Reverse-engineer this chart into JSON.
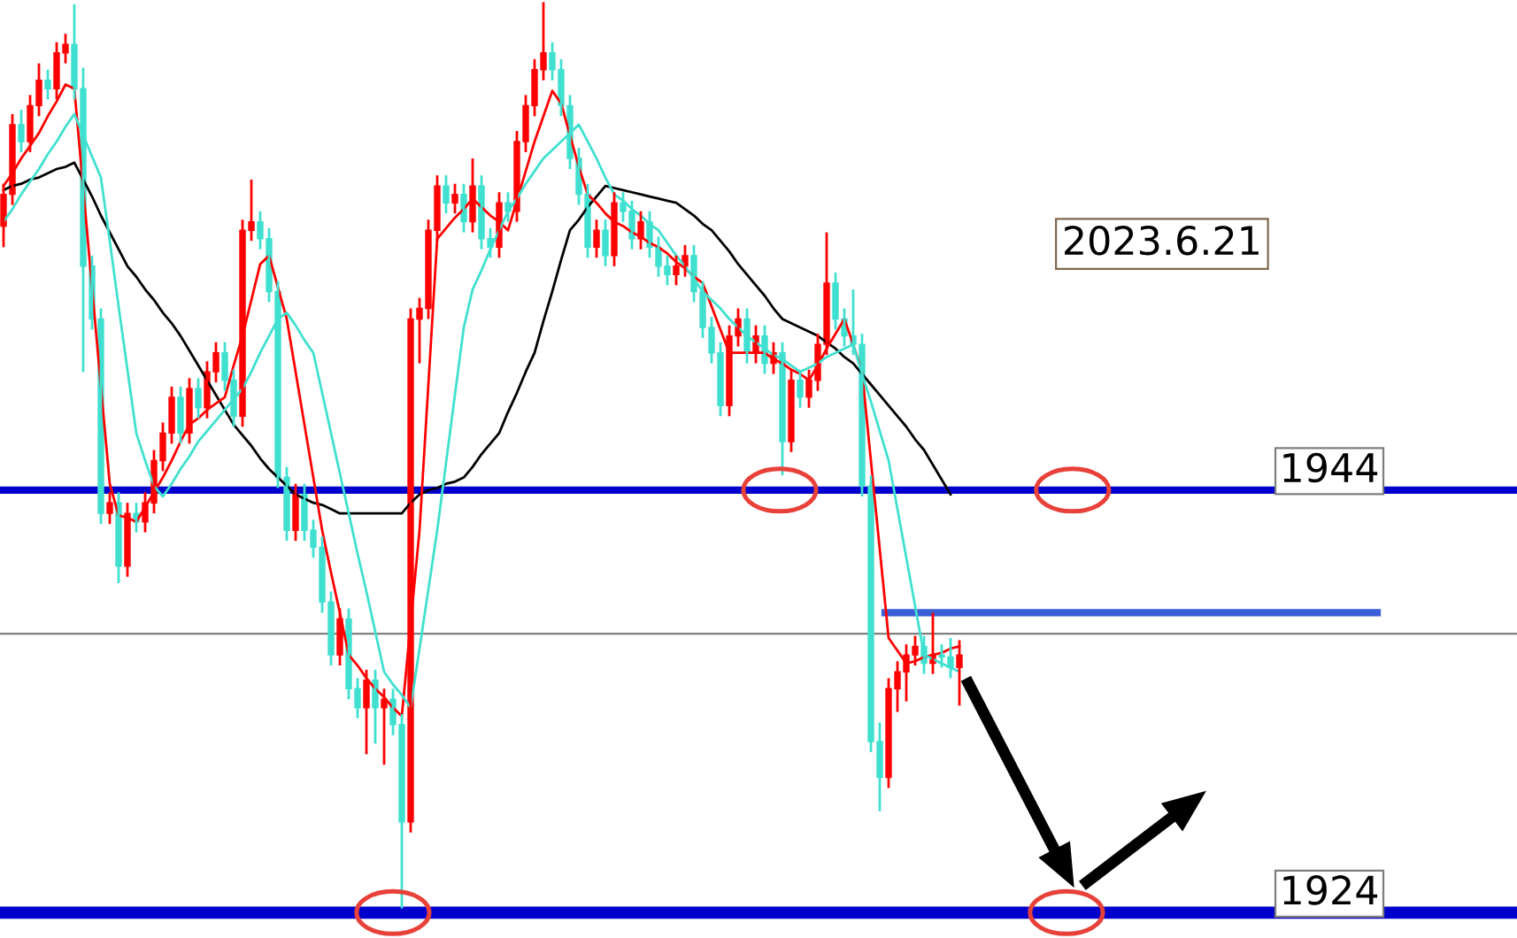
{
  "chart_data": {
    "type": "candlestick",
    "categories": [
      null,
      null,
      null,
      null,
      null,
      null,
      null,
      null,
      null,
      null,
      null,
      null,
      null,
      null,
      null,
      null,
      null,
      null,
      null,
      null,
      null,
      null,
      null,
      null,
      null,
      null,
      null,
      null,
      null,
      null,
      null,
      null,
      null,
      null,
      null,
      null,
      null,
      null,
      null,
      null,
      null,
      null,
      null,
      null,
      null,
      null,
      null,
      null,
      null,
      null,
      null,
      null,
      null,
      null,
      null,
      null,
      null,
      null,
      null,
      null,
      null,
      null,
      null,
      null,
      null,
      null,
      null,
      null,
      null,
      null,
      null,
      null,
      null,
      null,
      null,
      null,
      null,
      null,
      null,
      null,
      null,
      null,
      null,
      null,
      null,
      null,
      null,
      null,
      null,
      null,
      null,
      null,
      null,
      null,
      null,
      null,
      null,
      null,
      null,
      null,
      null,
      null,
      null,
      null,
      null,
      null,
      null,
      null,
      null
    ],
    "ohlc": [
      [
        1956.5,
        1958.5,
        1955.5,
        1958.0
      ],
      [
        1958.0,
        1961.8,
        1957.5,
        1961.3
      ],
      [
        1961.3,
        1962.0,
        1960.0,
        1960.5
      ],
      [
        1960.5,
        1962.7,
        1960.0,
        1962.2
      ],
      [
        1962.2,
        1964.2,
        1961.7,
        1963.4
      ],
      [
        1963.4,
        1963.9,
        1962.5,
        1963.0
      ],
      [
        1963.0,
        1965.2,
        1962.5,
        1964.7
      ],
      [
        1964.7,
        1965.6,
        1964.2,
        1965.1
      ],
      [
        1965.1,
        1967.0,
        1962.5,
        1963.0
      ],
      [
        1963.0,
        1964.0,
        1949.6,
        1954.6
      ],
      [
        1954.6,
        1955.1,
        1951.6,
        1952.1
      ],
      [
        1952.1,
        1952.6,
        1942.4,
        1942.9
      ],
      [
        1942.9,
        1943.9,
        1942.4,
        1943.4
      ],
      [
        1943.4,
        1943.9,
        1939.6,
        1940.4
      ],
      [
        1940.4,
        1943.4,
        1939.9,
        1942.9
      ],
      [
        1942.9,
        1943.4,
        1942.0,
        1942.5
      ],
      [
        1942.5,
        1943.9,
        1942.0,
        1943.4
      ],
      [
        1943.4,
        1945.9,
        1942.9,
        1945.4
      ],
      [
        1945.4,
        1947.2,
        1944.9,
        1946.7
      ],
      [
        1946.7,
        1948.9,
        1946.2,
        1948.4
      ],
      [
        1948.4,
        1948.9,
        1946.2,
        1946.7
      ],
      [
        1946.7,
        1949.3,
        1946.2,
        1948.8
      ],
      [
        1948.8,
        1949.3,
        1947.4,
        1947.9
      ],
      [
        1947.9,
        1950.1,
        1947.4,
        1949.6
      ],
      [
        1949.6,
        1951.0,
        1949.1,
        1950.5
      ],
      [
        1950.5,
        1951.0,
        1948.7,
        1949.2
      ],
      [
        1949.2,
        1949.7,
        1947.0,
        1947.5
      ],
      [
        1947.5,
        1956.8,
        1947.0,
        1956.3
      ],
      [
        1956.3,
        1958.7,
        1955.8,
        1956.7
      ],
      [
        1956.7,
        1957.2,
        1955.4,
        1955.9
      ],
      [
        1955.9,
        1956.4,
        1952.9,
        1953.4
      ],
      [
        1953.4,
        1953.9,
        1944.1,
        1944.6
      ],
      [
        1944.6,
        1945.1,
        1941.6,
        1942.1
      ],
      [
        1942.1,
        1944.3,
        1941.6,
        1943.8
      ],
      [
        1943.8,
        1944.3,
        1941.6,
        1942.1
      ],
      [
        1942.1,
        1942.6,
        1940.8,
        1941.3
      ],
      [
        1941.3,
        1941.8,
        1938.2,
        1938.7
      ],
      [
        1938.7,
        1939.2,
        1935.7,
        1936.2
      ],
      [
        1936.2,
        1938.4,
        1935.7,
        1937.9
      ],
      [
        1937.9,
        1938.4,
        1934.1,
        1934.6
      ],
      [
        1934.6,
        1935.1,
        1933.2,
        1933.7
      ],
      [
        1933.7,
        1935.5,
        1931.5,
        1935.0
      ],
      [
        1935.0,
        1935.5,
        1932.0,
        1933.7
      ],
      [
        1933.7,
        1934.6,
        1931.0,
        1934.1
      ],
      [
        1934.1,
        1934.6,
        1932.4,
        1932.9
      ],
      [
        1932.9,
        1933.4,
        1924.2,
        1928.3
      ],
      [
        1928.3,
        1952.6,
        1927.8,
        1952.1
      ],
      [
        1952.1,
        1953.1,
        1950.0,
        1952.6
      ],
      [
        1952.6,
        1956.8,
        1952.1,
        1956.3
      ],
      [
        1956.3,
        1958.9,
        1955.8,
        1958.4
      ],
      [
        1958.4,
        1958.9,
        1957.1,
        1957.6
      ],
      [
        1957.6,
        1958.5,
        1957.1,
        1958.0
      ],
      [
        1958.0,
        1958.5,
        1956.2,
        1956.7
      ],
      [
        1956.7,
        1959.7,
        1956.2,
        1958.4
      ],
      [
        1958.4,
        1958.9,
        1955.4,
        1955.9
      ],
      [
        1955.9,
        1956.4,
        1955.0,
        1955.5
      ],
      [
        1955.5,
        1958.1,
        1955.0,
        1957.6
      ],
      [
        1957.6,
        1958.1,
        1956.7,
        1957.2
      ],
      [
        1957.2,
        1961.0,
        1956.7,
        1960.5
      ],
      [
        1960.5,
        1962.7,
        1960.0,
        1962.2
      ],
      [
        1962.2,
        1964.4,
        1961.7,
        1963.9
      ],
      [
        1963.9,
        1967.1,
        1963.4,
        1964.7
      ],
      [
        1964.7,
        1965.2,
        1963.4,
        1963.9
      ],
      [
        1963.9,
        1964.4,
        1961.7,
        1962.2
      ],
      [
        1962.2,
        1962.7,
        1959.2,
        1959.7
      ],
      [
        1959.7,
        1960.2,
        1957.5,
        1958.0
      ],
      [
        1958.0,
        1958.5,
        1955.0,
        1955.5
      ],
      [
        1955.5,
        1956.8,
        1955.0,
        1956.3
      ],
      [
        1956.3,
        1956.8,
        1954.6,
        1955.1
      ],
      [
        1955.1,
        1958.1,
        1954.6,
        1957.6
      ],
      [
        1957.6,
        1958.1,
        1956.7,
        1957.2
      ],
      [
        1957.2,
        1957.7,
        1955.4,
        1955.9
      ],
      [
        1955.9,
        1957.2,
        1955.4,
        1956.7
      ],
      [
        1956.7,
        1957.2,
        1955.0,
        1955.5
      ],
      [
        1955.5,
        1956.0,
        1954.1,
        1954.6
      ],
      [
        1954.6,
        1955.1,
        1953.7,
        1954.2
      ],
      [
        1954.2,
        1955.1,
        1953.7,
        1954.6
      ],
      [
        1954.6,
        1955.6,
        1954.1,
        1955.1
      ],
      [
        1955.1,
        1955.6,
        1952.9,
        1953.4
      ],
      [
        1953.4,
        1953.9,
        1951.2,
        1951.7
      ],
      [
        1951.7,
        1952.2,
        1950.0,
        1950.5
      ],
      [
        1950.5,
        1951.0,
        1947.5,
        1948.0
      ],
      [
        1948.0,
        1951.8,
        1947.5,
        1951.3
      ],
      [
        1951.3,
        1952.6,
        1950.8,
        1952.1
      ],
      [
        1952.1,
        1952.6,
        1950.0,
        1950.5
      ],
      [
        1950.5,
        1951.8,
        1950.0,
        1951.3
      ],
      [
        1951.3,
        1951.8,
        1949.5,
        1950.0
      ],
      [
        1950.0,
        1951.0,
        1949.5,
        1950.5
      ],
      [
        1950.5,
        1951.0,
        1944.7,
        1946.3
      ],
      [
        1946.3,
        1949.7,
        1945.8,
        1949.2
      ],
      [
        1949.2,
        1949.7,
        1947.9,
        1948.4
      ],
      [
        1948.4,
        1949.7,
        1947.9,
        1949.2
      ],
      [
        1949.2,
        1951.4,
        1948.7,
        1950.9
      ],
      [
        1950.9,
        1956.2,
        1950.4,
        1953.8
      ],
      [
        1953.8,
        1954.3,
        1951.6,
        1952.1
      ],
      [
        1952.1,
        1952.6,
        1950.8,
        1951.3
      ],
      [
        1951.3,
        1953.5,
        1950.4,
        1950.9
      ],
      [
        1950.9,
        1951.4,
        1943.7,
        1944.2
      ],
      [
        1944.2,
        1944.7,
        1931.6,
        1932.1
      ],
      [
        1932.1,
        1933.0,
        1928.8,
        1930.4
      ],
      [
        1930.4,
        1935.1,
        1929.9,
        1934.6
      ],
      [
        1934.6,
        1935.9,
        1933.5,
        1935.4
      ],
      [
        1935.4,
        1936.7,
        1934.0,
        1936.2
      ],
      [
        1936.2,
        1937.1,
        1935.7,
        1936.6
      ],
      [
        1936.6,
        1937.1,
        1935.3,
        1935.8
      ],
      [
        1935.8,
        1938.2,
        1935.3,
        1936.2
      ],
      [
        1936.2,
        1936.7,
        1935.6,
        1936.1
      ],
      [
        1936.1,
        1937.0,
        1935.1,
        1935.6
      ],
      [
        1935.6,
        1936.9,
        1933.8,
        1936.2
      ]
    ],
    "colors": [
      "#ff0000",
      "#ff0000",
      "#40e0d0",
      "#ff0000",
      "#ff0000",
      "#40e0d0",
      "#ff0000",
      "#ff0000",
      "#40e0d0",
      "#40e0d0",
      "#40e0d0",
      "#40e0d0",
      "#ff0000",
      "#40e0d0",
      "#ff0000",
      "#40e0d0",
      "#ff0000",
      "#ff0000",
      "#ff0000",
      "#ff0000",
      "#40e0d0",
      "#ff0000",
      "#40e0d0",
      "#ff0000",
      "#ff0000",
      "#40e0d0",
      "#40e0d0",
      "#ff0000",
      "#ff0000",
      "#40e0d0",
      "#40e0d0",
      "#40e0d0",
      "#40e0d0",
      "#ff0000",
      "#40e0d0",
      "#40e0d0",
      "#40e0d0",
      "#40e0d0",
      "#ff0000",
      "#40e0d0",
      "#40e0d0",
      "#ff0000",
      "#40e0d0",
      "#ff0000",
      "#40e0d0",
      "#40e0d0",
      "#ff0000",
      "#ff0000",
      "#ff0000",
      "#ff0000",
      "#40e0d0",
      "#ff0000",
      "#40e0d0",
      "#ff0000",
      "#40e0d0",
      "#40e0d0",
      "#ff0000",
      "#40e0d0",
      "#ff0000",
      "#ff0000",
      "#ff0000",
      "#ff0000",
      "#40e0d0",
      "#40e0d0",
      "#40e0d0",
      "#40e0d0",
      "#40e0d0",
      "#ff0000",
      "#40e0d0",
      "#ff0000",
      "#40e0d0",
      "#40e0d0",
      "#ff0000",
      "#40e0d0",
      "#40e0d0",
      "#40e0d0",
      "#ff0000",
      "#ff0000",
      "#40e0d0",
      "#40e0d0",
      "#40e0d0",
      "#40e0d0",
      "#ff0000",
      "#ff0000",
      "#40e0d0",
      "#ff0000",
      "#40e0d0",
      "#ff0000",
      "#40e0d0",
      "#ff0000",
      "#40e0d0",
      "#ff0000",
      "#ff0000",
      "#ff0000",
      "#40e0d0",
      "#40e0d0",
      "#40e0d0",
      "#40e0d0",
      "#40e0d0",
      "#40e0d0",
      "#ff0000",
      "#ff0000",
      "#ff0000",
      "#ff0000",
      "#40e0d0",
      "#ff0000",
      "#40e0d0",
      "#40e0d0",
      "#ff0000"
    ],
    "series": [
      {
        "type": "line",
        "color": "#000000",
        "values": [
          1958.2,
          1958.4,
          1958.5,
          1958.7,
          1958.8,
          1959.0,
          1959.2,
          1959.3,
          1959.5,
          1958.7,
          1957.9,
          1957.0,
          1956.2,
          1955.4,
          1954.6,
          1954.1,
          1953.5,
          1953.0,
          1952.4,
          1951.9,
          1951.3,
          1950.6,
          1949.9,
          1949.2,
          1948.5,
          1947.8,
          1947.1,
          1946.6,
          1946.1,
          1945.5,
          1945.0,
          1944.6,
          1944.2,
          1943.8,
          1943.6,
          1943.4,
          1943.3,
          1943.1,
          1942.9,
          1942.9,
          1942.9,
          1942.9,
          1942.9,
          1942.9,
          1942.9,
          1942.9,
          1943.4,
          1943.8,
          1944.0,
          1944.1,
          1944.3,
          1944.4,
          1944.6,
          1945.1,
          1945.7,
          1946.2,
          1946.7,
          1947.7,
          1948.6,
          1949.6,
          1950.5,
          1952.0,
          1953.4,
          1954.9,
          1956.3,
          1956.8,
          1957.4,
          1957.9,
          1958.4,
          1958.3,
          1958.2,
          1958.1,
          1958.0,
          1957.9,
          1957.8,
          1957.7,
          1957.6,
          1957.3,
          1957.0,
          1956.6,
          1956.3,
          1955.8,
          1955.3,
          1954.7,
          1954.2,
          1953.7,
          1953.2,
          1952.6,
          1952.1,
          1951.9,
          1951.7,
          1951.5,
          1951.3,
          1951.0,
          1950.7,
          1950.3,
          1950.0,
          1949.5,
          1949.0,
          1948.5,
          1948.0,
          1947.5,
          1947.0,
          1946.4,
          1945.9,
          1945.2,
          1944.5,
          1943.8,
          null
        ]
      },
      {
        "type": "line",
        "color": "#ff0000",
        "values": [
          1958.4,
          1959.0,
          1959.7,
          1960.3,
          1960.9,
          1961.7,
          1962.4,
          1963.2,
          1963.0,
          1958.3,
          1953.6,
          1948.9,
          1944.3,
          1942.8,
          1942.7,
          1942.5,
          1943.2,
          1943.9,
          1944.6,
          1945.4,
          1946.3,
          1947.1,
          1947.4,
          1947.8,
          1948.1,
          1948.4,
          1949.9,
          1951.3,
          1953.0,
          1954.7,
          1955.1,
          1953.6,
          1952.1,
          1949.6,
          1947.1,
          1944.6,
          1942.1,
          1940.1,
          1938.2,
          1936.2,
          1935.7,
          1935.1,
          1934.6,
          1934.2,
          1933.7,
          1933.3,
          1937.7,
          1942.1,
          1949.0,
          1955.9,
          1956.4,
          1956.9,
          1957.3,
          1957.8,
          1957.4,
          1957.0,
          1956.7,
          1956.3,
          1957.7,
          1959.1,
          1960.5,
          1961.7,
          1962.9,
          1962.3,
          1960.8,
          1959.3,
          1958.0,
          1957.6,
          1957.1,
          1956.7,
          1956.5,
          1956.2,
          1956.0,
          1955.7,
          1955.5,
          1955.2,
          1954.8,
          1954.5,
          1954.1,
          1953.8,
          1952.7,
          1951.6,
          1950.5,
          1950.5,
          1950.5,
          1950.5,
          1950.5,
          1950.2,
          1950.0,
          1949.7,
          1949.5,
          1949.2,
          1949.9,
          1950.7,
          1951.4,
          1952.1,
          1950.9,
          1949.6,
          1945.4,
          1941.2,
          1937.0,
          1936.4,
          1935.8,
          1935.9,
          1936.1,
          1936.2,
          1936.3,
          1936.5,
          1936.6
        ]
      },
      {
        "type": "line",
        "color": "#40e0d0",
        "values": [
          1956.7,
          1957.3,
          1958.0,
          1958.6,
          1959.2,
          1959.9,
          1960.5,
          1961.2,
          1961.8,
          1960.8,
          1959.8,
          1958.8,
          1955.8,
          1952.7,
          1949.7,
          1946.7,
          1945.4,
          1944.2,
          1943.7,
          1944.3,
          1945.0,
          1945.6,
          1946.3,
          1946.8,
          1947.3,
          1947.8,
          1948.3,
          1948.8,
          1949.6,
          1950.5,
          1951.3,
          1952.1,
          1952.4,
          1951.8,
          1951.1,
          1950.5,
          1948.6,
          1946.7,
          1944.8,
          1942.9,
          1941.0,
          1939.2,
          1937.3,
          1935.4,
          1934.8,
          1934.3,
          1933.7,
          1936.5,
          1939.3,
          1942.1,
          1945.3,
          1948.5,
          1951.7,
          1953.5,
          1954.4,
          1955.4,
          1956.3,
          1957.2,
          1957.8,
          1958.5,
          1959.1,
          1959.7,
          1960.1,
          1960.5,
          1960.9,
          1961.3,
          1960.5,
          1959.7,
          1958.8,
          1958.0,
          1957.7,
          1957.3,
          1957.0,
          1956.6,
          1956.3,
          1955.7,
          1955.1,
          1954.6,
          1954.0,
          1953.4,
          1953.0,
          1952.6,
          1952.1,
          1951.7,
          1951.3,
          1951.0,
          1950.7,
          1950.4,
          1950.2,
          1949.9,
          1949.6,
          1949.8,
          1950.0,
          1950.3,
          1950.5,
          1950.7,
          1950.9,
          1949.5,
          1948.2,
          1946.8,
          1945.4,
          1943.1,
          1940.8,
          1938.5,
          1936.2,
          1936.0,
          1935.8,
          1935.6,
          1935.4
        ]
      }
    ],
    "ylim": [
      1922.8,
      1967.2
    ],
    "yticks": [
      1944,
      1924
    ],
    "ref_lines": [
      {
        "axis": "y",
        "value": 1944,
        "color": "#0000cc"
      },
      {
        "axis": "y",
        "value": 1924,
        "color": "#0000cc"
      },
      {
        "axis": "y",
        "value": 1937.2,
        "color": "#808080"
      },
      {
        "axis": "y",
        "value": 1938.2,
        "color": "#3a5fd6"
      }
    ],
    "annotations": [
      "2023.6.21"
    ],
    "tick_labels": "y"
  }
}
